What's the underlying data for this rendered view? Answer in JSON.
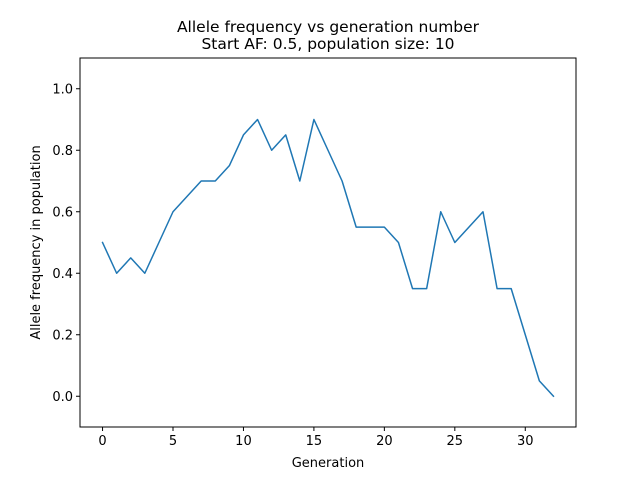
{
  "chart_data": {
    "type": "line",
    "title": "Allele frequency vs generation number",
    "subtitle": "Start AF: 0.5, population size: 10",
    "xlabel": "Generation",
    "ylabel": "Allele frequency in population",
    "xlim": [
      -1.6,
      33.6
    ],
    "ylim": [
      -0.1,
      1.1
    ],
    "xticks": [
      0,
      5,
      10,
      15,
      20,
      25,
      30
    ],
    "yticks": [
      0.0,
      0.2,
      0.4,
      0.6,
      0.8,
      1.0
    ],
    "xtick_labels": [
      "0",
      "5",
      "10",
      "15",
      "20",
      "25",
      "30"
    ],
    "ytick_labels": [
      "0.0",
      "0.2",
      "0.4",
      "0.6",
      "0.8",
      "1.0"
    ],
    "grid": false,
    "series": [
      {
        "color": "#1f77b4",
        "x": [
          0,
          1,
          2,
          3,
          4,
          5,
          6,
          7,
          8,
          9,
          10,
          11,
          12,
          13,
          14,
          15,
          16,
          17,
          18,
          19,
          20,
          21,
          22,
          23,
          24,
          25,
          26,
          27,
          28,
          29,
          30,
          31,
          32
        ],
        "y": [
          0.5,
          0.4,
          0.45,
          0.4,
          0.5,
          0.6,
          0.65,
          0.7,
          0.7,
          0.75,
          0.85,
          0.9,
          0.8,
          0.85,
          0.7,
          0.9,
          0.8,
          0.7,
          0.55,
          0.55,
          0.55,
          0.5,
          0.35,
          0.35,
          0.6,
          0.5,
          0.55,
          0.6,
          0.35,
          0.35,
          0.2,
          0.05,
          0.0
        ]
      }
    ]
  }
}
